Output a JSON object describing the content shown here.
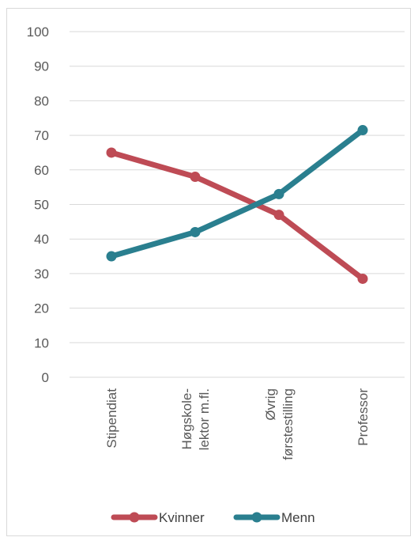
{
  "chart_data": {
    "type": "line",
    "title": "",
    "xlabel": "",
    "ylabel": "",
    "categories": [
      [
        "Stipendiat"
      ],
      [
        "Høgskole-",
        "lektor m.fl."
      ],
      [
        "Øvrig",
        "førstestilling"
      ],
      [
        "Professor"
      ]
    ],
    "series": [
      {
        "name": "Kvinner",
        "color": "#be4b55",
        "values": [
          65,
          58,
          47,
          28.5
        ]
      },
      {
        "name": "Menn",
        "color": "#2a7f8f",
        "values": [
          35,
          42,
          53,
          71.5
        ]
      }
    ],
    "ylim": [
      0,
      100
    ],
    "yticks": [
      0,
      10,
      20,
      30,
      40,
      50,
      60,
      70,
      80,
      90,
      100
    ],
    "grid": true,
    "legend": "bottom",
    "gridColor": "#d9d9d9",
    "tickColor": "#595959"
  }
}
